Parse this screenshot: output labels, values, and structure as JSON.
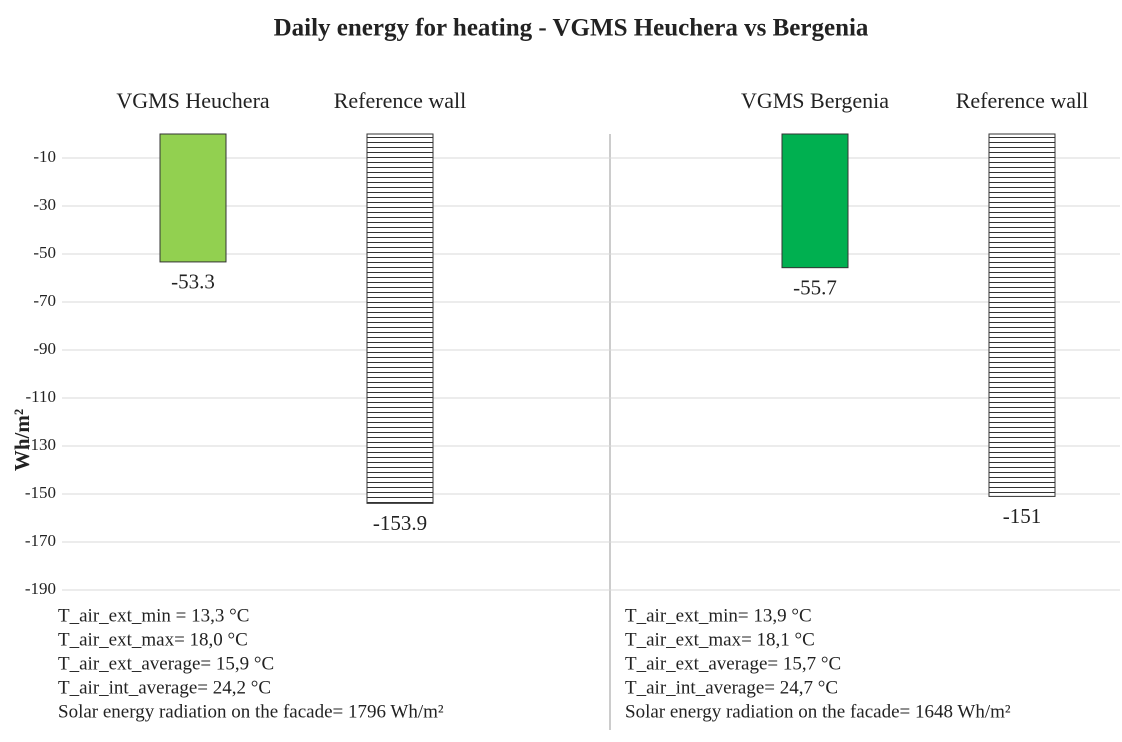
{
  "chart_data": {
    "type": "bar",
    "title": "Daily energy for heating - VGMS Heuchera vs Bergenia",
    "y_label": "Wh/m²",
    "categories": [
      "VGMS Heuchera",
      "Reference wall",
      "VGMS Bergenia",
      "Reference wall"
    ],
    "values": [
      -53.3,
      -153.9,
      -55.7,
      -151
    ],
    "colors": [
      "#92d050",
      "#ffffff",
      "#00b050",
      "#ffffff"
    ],
    "hatch": [
      false,
      true,
      false,
      true
    ],
    "ylim": [
      -190,
      0
    ],
    "yticks": [
      -10,
      -30,
      -50,
      -70,
      -90,
      -110,
      -130,
      -150,
      -170,
      -190
    ],
    "grid": true,
    "annotations": [
      [
        "T_air_ext_min = 13,3  °C",
        "T_air_ext_max= 18,0  °C",
        "T_air_ext_average= 15,9 °C",
        "T_air_int_average= 24,2 °C",
        "Solar energy radiation on the facade= 1796 Wh/m²"
      ],
      [
        "T_air_ext_min= 13,9  °C",
        "T_air_ext_max= 18,1  °C",
        "T_air_ext_average= 15,7 °C",
        "T_air_int_average= 24,7 °C",
        "Solar energy radiation on the facade= 1648 Wh/m²"
      ]
    ]
  }
}
